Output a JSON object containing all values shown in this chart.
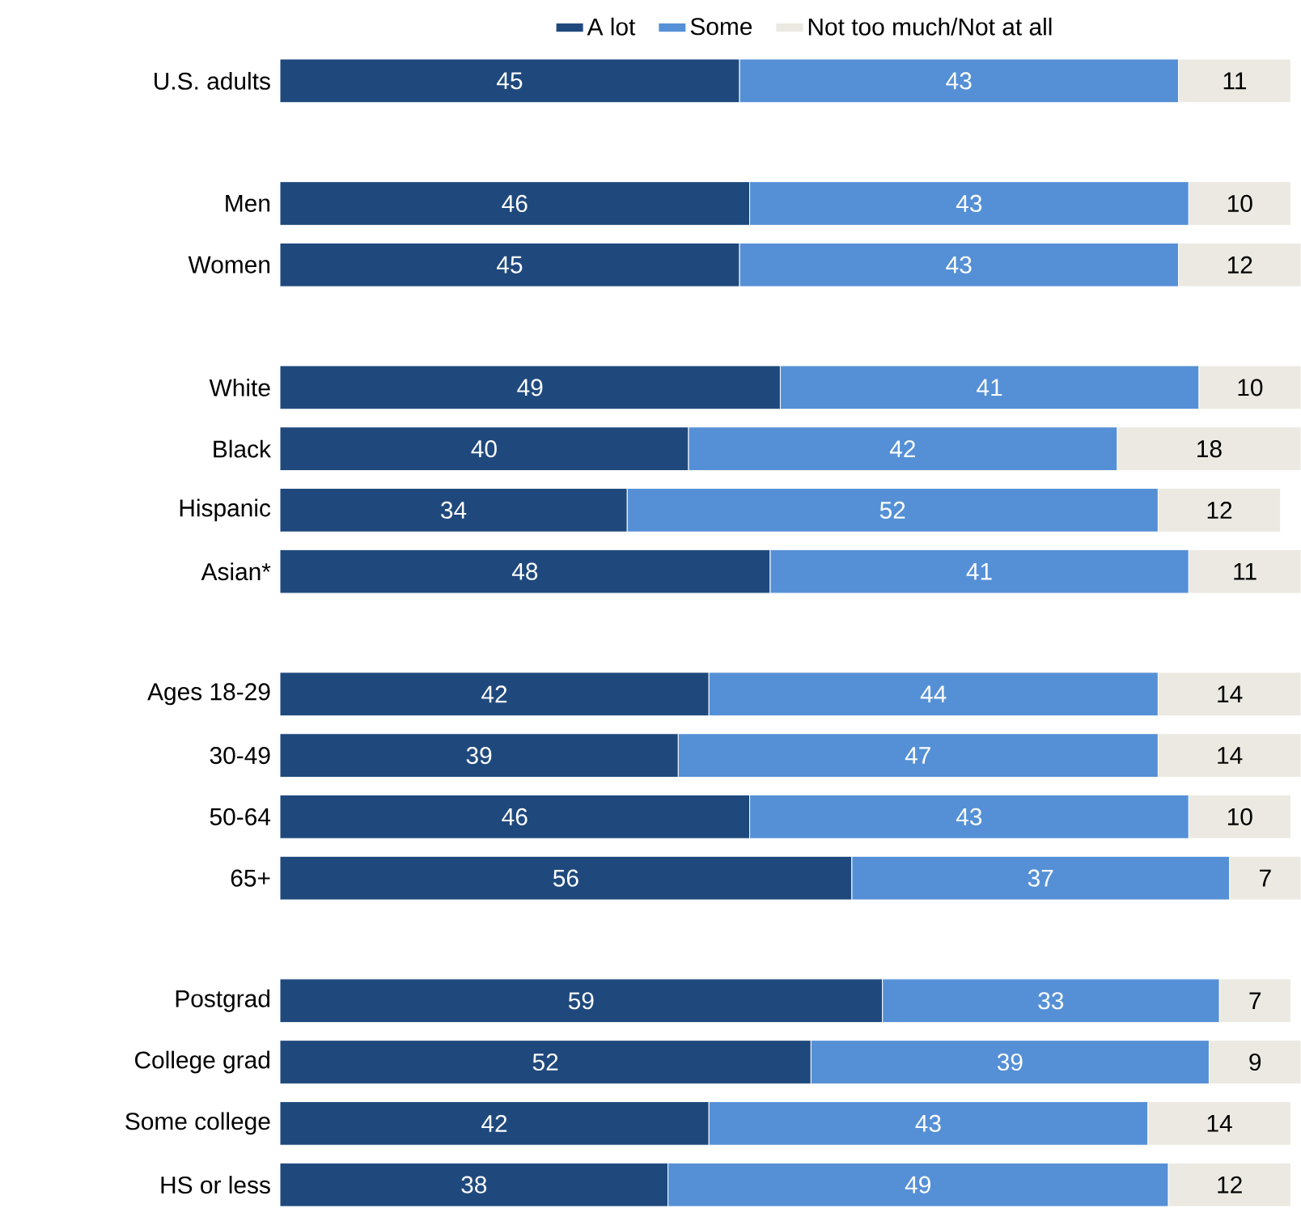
{
  "chart_data": {
    "type": "bar",
    "orientation": "horizontal",
    "stacked": true,
    "data_labels": true,
    "legend": "top",
    "categories": [
      "U.S. adults",
      null,
      "Men",
      "Women",
      null,
      "White",
      "Black",
      "Hispanic",
      "Asian*",
      null,
      "Ages 18-29",
      "30-49",
      "50-64",
      "65+",
      null,
      "Postgrad",
      "College grad",
      "Some college",
      "HS or less"
    ],
    "series": [
      {
        "name": "A lot",
        "color": "#1f497d",
        "values": [
          45,
          null,
          46,
          45,
          null,
          49,
          40,
          34,
          48,
          null,
          42,
          39,
          46,
          56,
          null,
          59,
          52,
          42,
          38
        ]
      },
      {
        "name": "Some",
        "color": "#5590d6",
        "values": [
          43,
          null,
          43,
          43,
          null,
          41,
          42,
          52,
          41,
          null,
          44,
          47,
          43,
          37,
          null,
          33,
          39,
          43,
          49
        ]
      },
      {
        "name": "Not too much/Not at all",
        "color": "#ebe9e1",
        "values": [
          11,
          null,
          10,
          12,
          null,
          10,
          18,
          12,
          11,
          null,
          14,
          14,
          10,
          7,
          null,
          7,
          9,
          14,
          12
        ]
      }
    ]
  }
}
